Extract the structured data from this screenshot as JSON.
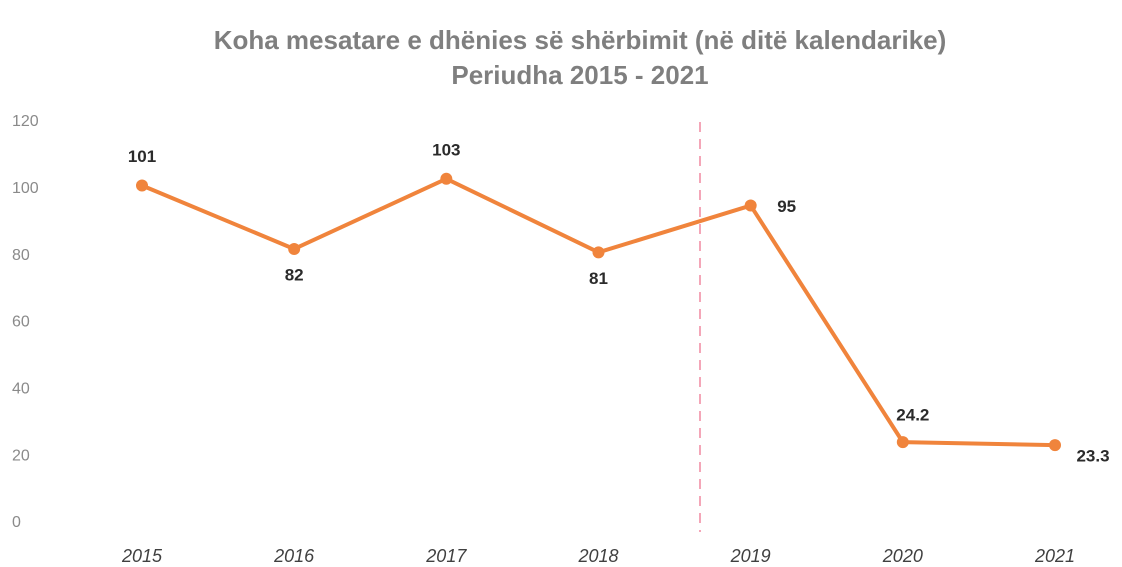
{
  "chart_data": {
    "type": "line",
    "title": "Koha mesatare e dhënies së shërbimit (në ditë kalendarike)",
    "subtitle": "Periudha 2015 - 2021",
    "categories": [
      "2015",
      "2016",
      "2017",
      "2018",
      "2019",
      "2020",
      "2021"
    ],
    "values": [
      101,
      82,
      103,
      81,
      95,
      24.2,
      23.3
    ],
    "color": "#f0843c",
    "ylim": [
      0,
      120
    ],
    "yticks": [
      0,
      20,
      40,
      60,
      80,
      100,
      120
    ],
    "grid": false
  }
}
